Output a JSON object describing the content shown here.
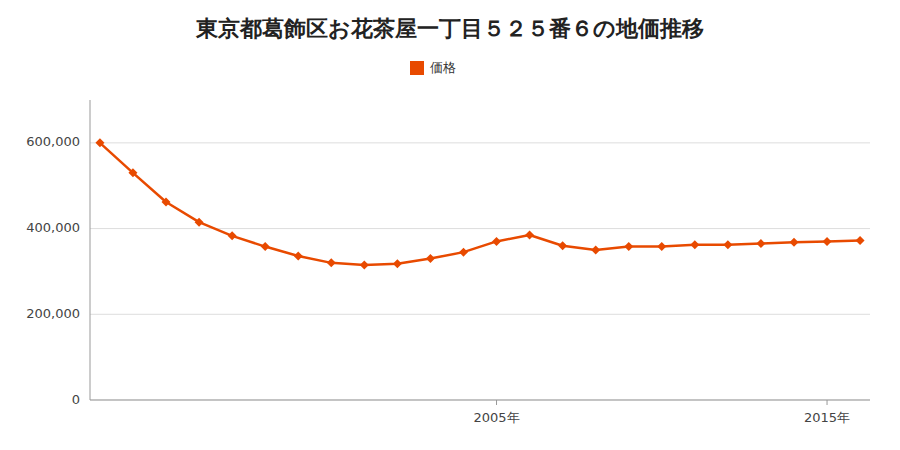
{
  "chart_data": {
    "type": "line",
    "title": "東京都葛飾区お花茶屋一丁目５２５番６の地価推移",
    "x": [
      1993,
      1994,
      1995,
      1996,
      1997,
      1998,
      1999,
      2000,
      2001,
      2002,
      2003,
      2004,
      2005,
      2006,
      2007,
      2008,
      2009,
      2010,
      2011,
      2012,
      2013,
      2014,
      2015,
      2016
    ],
    "series": [
      {
        "name": "価格",
        "color": "#e84a00",
        "marker": "diamond",
        "line_style": "solid",
        "values": [
          600000,
          530000,
          462000,
          415000,
          383000,
          358000,
          336000,
          320000,
          315000,
          318000,
          330000,
          345000,
          370000,
          385000,
          360000,
          350000,
          358000,
          358000,
          362000,
          362000,
          365000,
          368000,
          370000,
          372000
        ]
      }
    ],
    "xlim": [
      1992.7,
      2016.3
    ],
    "xticks": [
      {
        "value": 2005,
        "label": "2005年"
      },
      {
        "value": 2015,
        "label": "2015年"
      }
    ],
    "ylim": [
      0,
      700000
    ],
    "yticks": [
      0,
      {
        "value": 200000,
        "label": "200,000"
      },
      {
        "value": 400000,
        "label": "400,000"
      },
      {
        "value": 600000,
        "label": "600,000"
      }
    ],
    "grid": true,
    "legend": "top"
  }
}
